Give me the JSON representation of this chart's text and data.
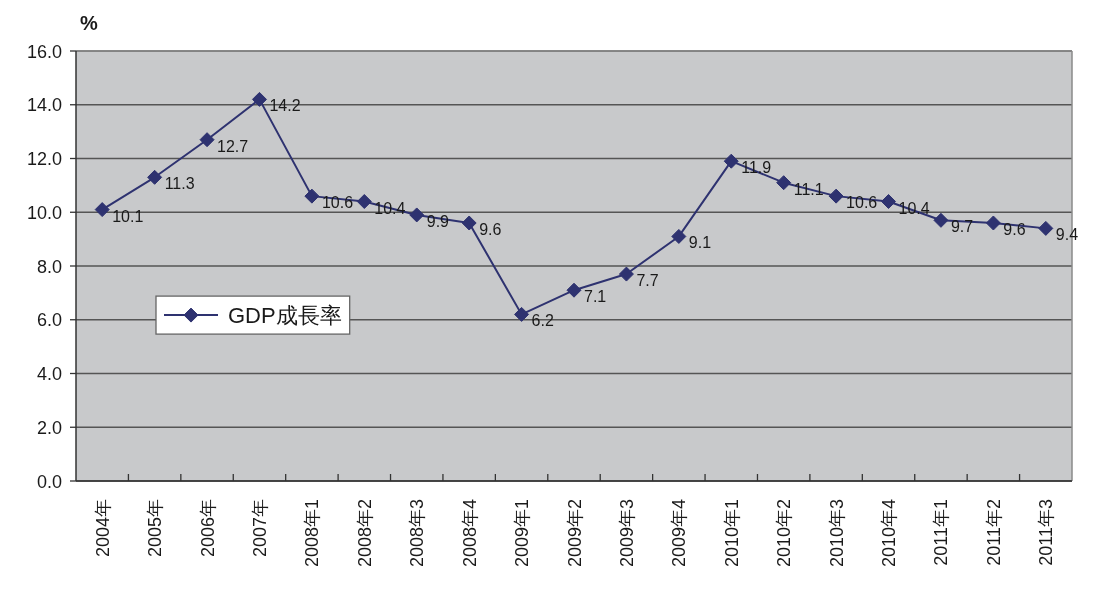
{
  "chart_data": {
    "type": "line",
    "ylabel": "%",
    "categories": [
      "2004年",
      "2005年",
      "2006年",
      "2007年",
      "2008年1",
      "2008年2",
      "2008年3",
      "2008年4",
      "2009年1",
      "2009年2",
      "2009年3",
      "2009年4",
      "2010年1",
      "2010年2",
      "2010年3",
      "2010年4",
      "2011年1",
      "2011年2",
      "2011年3"
    ],
    "series": [
      {
        "name": "GDP成長率",
        "color": "#2e3270",
        "values": [
          10.1,
          11.3,
          12.7,
          14.2,
          10.6,
          10.4,
          9.9,
          9.6,
          6.2,
          7.1,
          7.7,
          9.1,
          11.9,
          11.1,
          10.6,
          10.4,
          9.7,
          9.6,
          9.4
        ]
      }
    ],
    "ylim": [
      0,
      16
    ],
    "yticks": [
      {
        "value": 0,
        "label": "0.0"
      },
      {
        "value": 2,
        "label": "2.0"
      },
      {
        "value": 4,
        "label": "4.0"
      },
      {
        "value": 6,
        "label": "6.0"
      },
      {
        "value": 8,
        "label": "8.0"
      },
      {
        "value": 10,
        "label": "10.0"
      },
      {
        "value": 12,
        "label": "12.0"
      },
      {
        "value": 14,
        "label": "14.0"
      },
      {
        "value": 16,
        "label": "16.0"
      }
    ],
    "grid": "y",
    "legend": "left",
    "marker": "diamond",
    "line_style": "solid",
    "data_labels": true
  }
}
